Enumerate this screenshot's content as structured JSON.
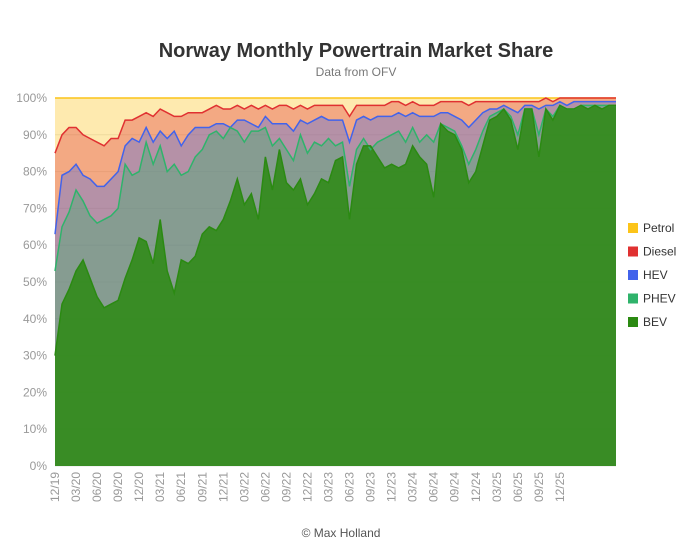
{
  "chart_data": {
    "type": "area",
    "title": "Norway Monthly Powertrain Market Share",
    "subtitle": "Data from OFV",
    "credit": "© Max Holland",
    "xlabel": "",
    "ylabel": "",
    "ylim": [
      0,
      100
    ],
    "y_ticks": [
      "0%",
      "10%",
      "20%",
      "30%",
      "40%",
      "50%",
      "60%",
      "70%",
      "80%",
      "90%",
      "100%"
    ],
    "x_tick_labels": [
      "12/19",
      "03/20",
      "06/20",
      "09/20",
      "12/20",
      "03/21",
      "06/21",
      "09/21",
      "12/21",
      "03/22",
      "06/22",
      "09/22",
      "12/22",
      "03/23",
      "06/23",
      "09/23",
      "12/23",
      "03/24",
      "06/24",
      "09/24",
      "12/24",
      "03/25",
      "06/25",
      "09/25",
      "12/25"
    ],
    "legend_position": "right",
    "colors": {
      "Petrol": "#fcc419",
      "Diesel": "#e03131",
      "HEV": "#4263eb",
      "PHEV": "#2fb36b",
      "BEV": "#2b8a12"
    },
    "series_cumulative": [
      {
        "name": "BEV",
        "values": [
          30,
          44,
          48,
          53,
          56,
          51,
          46,
          43,
          44,
          45,
          51,
          56,
          62,
          61,
          55,
          67,
          53,
          47,
          56,
          55,
          57,
          63,
          65,
          64,
          67,
          72,
          78,
          71,
          74,
          67,
          84,
          75,
          86,
          77,
          75,
          78,
          71,
          74,
          78,
          77,
          83,
          84,
          67,
          82,
          87,
          87,
          84,
          81,
          82,
          81,
          82,
          87,
          84,
          82,
          73,
          93,
          91,
          90,
          86,
          77,
          80,
          87,
          94,
          95,
          97,
          94,
          86,
          97,
          97,
          84,
          97,
          94,
          98,
          97,
          97,
          98,
          97,
          98,
          97,
          98,
          98
        ]
      },
      {
        "name": "PHEV",
        "values": [
          53,
          65,
          69,
          75,
          72,
          68,
          66,
          67,
          68,
          70,
          82,
          79,
          80,
          88,
          82,
          87,
          80,
          82,
          79,
          80,
          84,
          86,
          90,
          91,
          89,
          92,
          91,
          88,
          91,
          91,
          92,
          87,
          89,
          86,
          83,
          90,
          85,
          88,
          87,
          89,
          87,
          88,
          76,
          86,
          89,
          86,
          88,
          89,
          90,
          91,
          88,
          92,
          88,
          90,
          88,
          93,
          92,
          91,
          87,
          82,
          86,
          91,
          95,
          96,
          97,
          95,
          90,
          97,
          97,
          90,
          97,
          95,
          98,
          97,
          97,
          98,
          98,
          98,
          98,
          98,
          98
        ]
      },
      {
        "name": "HEV",
        "values": [
          63,
          79,
          80,
          82,
          79,
          78,
          76,
          76,
          78,
          80,
          87,
          89,
          88,
          92,
          88,
          91,
          89,
          91,
          87,
          90,
          92,
          92,
          92,
          93,
          93,
          92,
          94,
          94,
          93,
          92,
          95,
          93,
          93,
          93,
          91,
          94,
          93,
          94,
          95,
          94,
          94,
          94,
          88,
          94,
          95,
          94,
          95,
          95,
          95,
          96,
          95,
          96,
          95,
          95,
          95,
          96,
          96,
          95,
          94,
          92,
          94,
          96,
          97,
          97,
          98,
          97,
          96,
          98,
          98,
          97,
          98,
          98,
          99,
          98,
          99,
          99,
          99,
          99,
          99,
          99,
          99
        ]
      },
      {
        "name": "Diesel",
        "values": [
          85,
          90,
          92,
          92,
          90,
          89,
          88,
          87,
          89,
          89,
          94,
          94,
          95,
          96,
          95,
          97,
          96,
          95,
          95,
          96,
          96,
          96,
          97,
          98,
          97,
          97,
          98,
          97,
          98,
          97,
          98,
          97,
          98,
          98,
          97,
          98,
          97,
          98,
          98,
          98,
          98,
          98,
          95,
          98,
          98,
          98,
          98,
          98,
          99,
          99,
          98,
          99,
          98,
          98,
          98,
          99,
          99,
          99,
          99,
          98,
          99,
          99,
          99,
          99,
          99,
          99,
          99,
          99,
          99,
          99,
          100,
          99,
          100,
          100,
          100,
          100,
          100,
          100,
          100,
          100,
          100
        ]
      },
      {
        "name": "Petrol",
        "values": [
          100,
          100,
          100,
          100,
          100,
          100,
          100,
          100,
          100,
          100,
          100,
          100,
          100,
          100,
          100,
          100,
          100,
          100,
          100,
          100,
          100,
          100,
          100,
          100,
          100,
          100,
          100,
          100,
          100,
          100,
          100,
          100,
          100,
          100,
          100,
          100,
          100,
          100,
          100,
          100,
          100,
          100,
          100,
          100,
          100,
          100,
          100,
          100,
          100,
          100,
          100,
          100,
          100,
          100,
          100,
          100,
          100,
          100,
          100,
          100,
          100,
          100,
          100,
          100,
          100,
          100,
          100,
          100,
          100,
          100,
          100,
          100,
          100,
          100,
          100,
          100,
          100,
          100,
          100,
          100,
          100
        ]
      }
    ]
  }
}
